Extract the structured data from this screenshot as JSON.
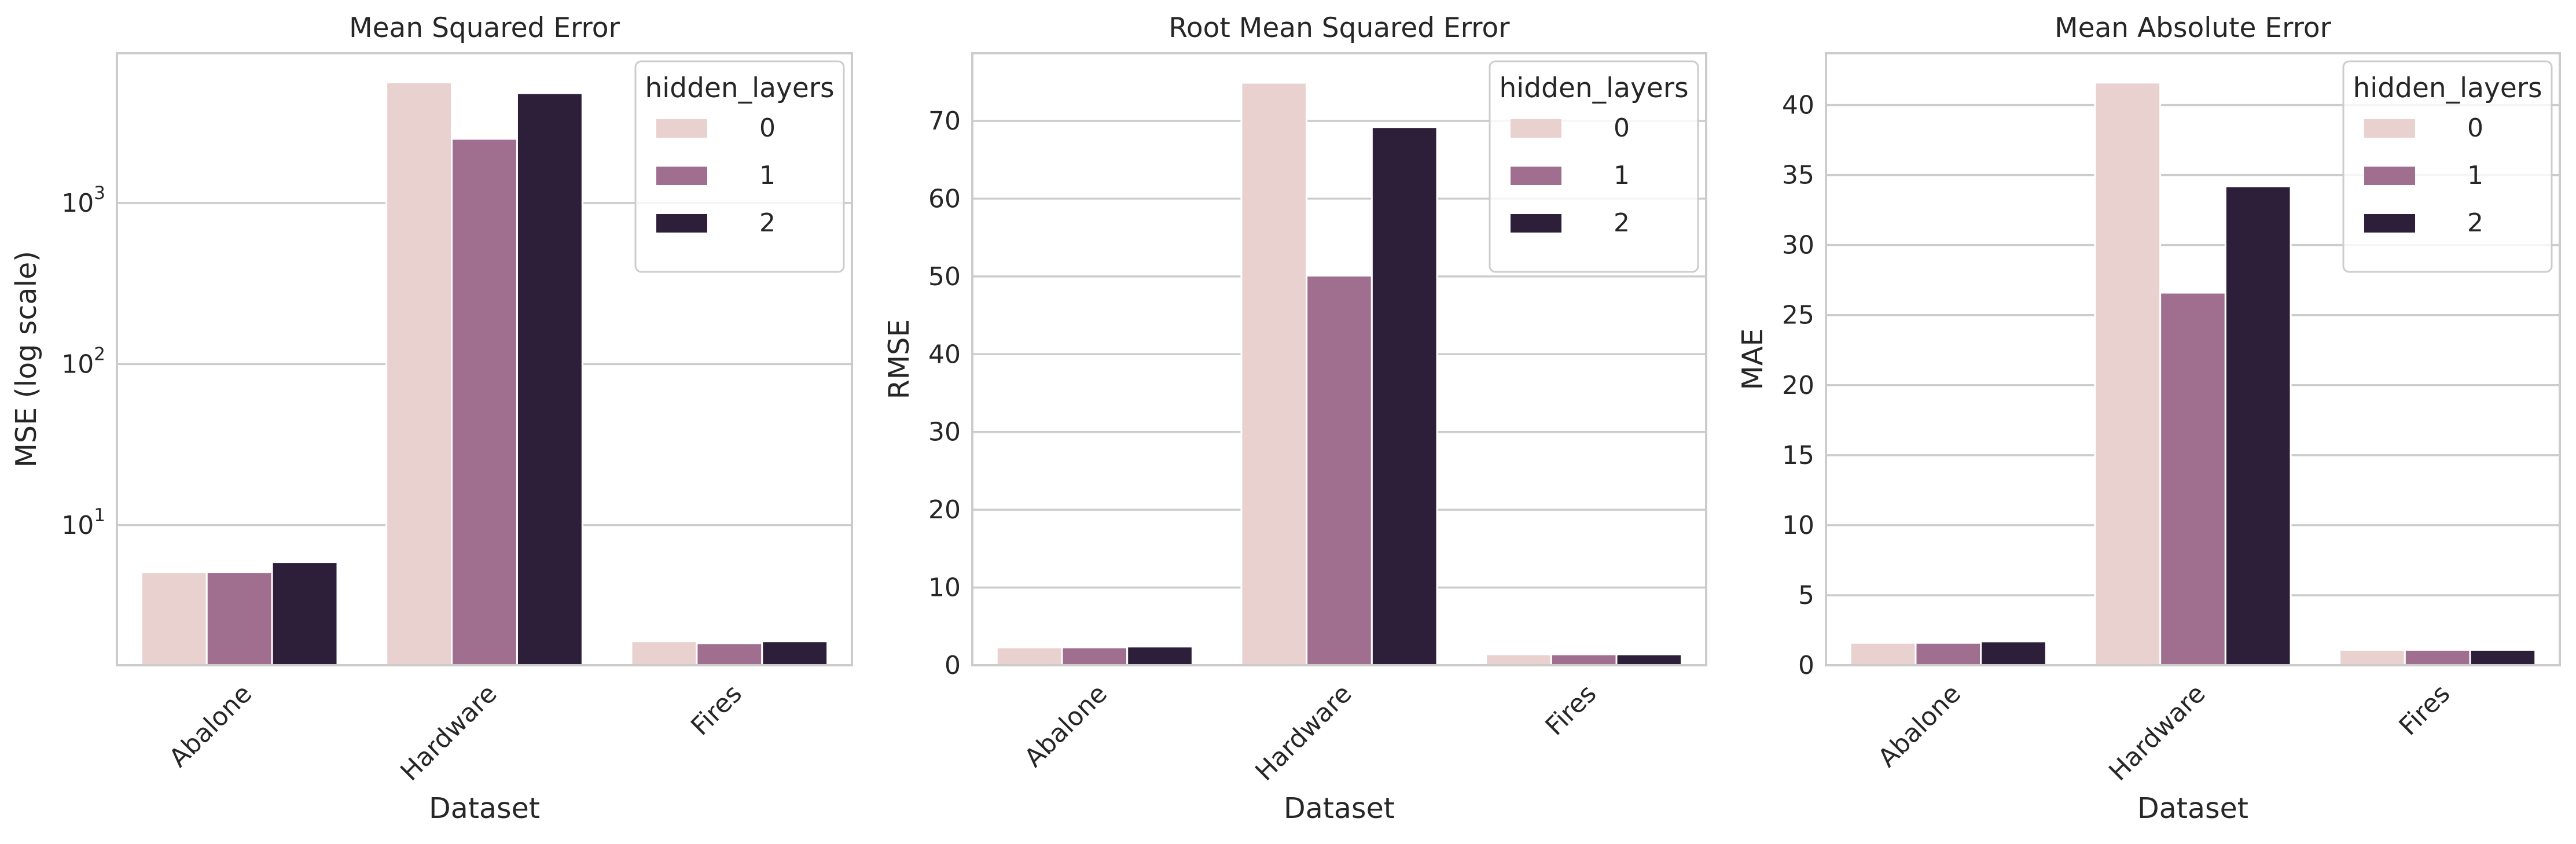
{
  "palette": [
    "#e8d1cf",
    "#a06e8e",
    "#2d1f39"
  ],
  "chart_data": [
    {
      "type": "bar",
      "title": "Mean Squared Error",
      "xlabel": "Dataset",
      "ylabel": "MSE (log scale)",
      "yscale": "log",
      "ylim": [
        1.35,
        8500
      ],
      "yticks": [
        {
          "value": 10,
          "base": "10",
          "exp": "1"
        },
        {
          "value": 100,
          "base": "10",
          "exp": "2"
        },
        {
          "value": 1000,
          "base": "10",
          "exp": "3"
        }
      ],
      "grid": true,
      "categories": [
        "Abalone",
        "Hardware",
        "Fires"
      ],
      "legend": {
        "title": "hidden_layers",
        "placement": "top-right"
      },
      "series": [
        {
          "name": "0",
          "values": [
            5.1,
            5600,
            1.9
          ]
        },
        {
          "name": "1",
          "values": [
            5.1,
            2500,
            1.85
          ]
        },
        {
          "name": "2",
          "values": [
            5.9,
            4800,
            1.9
          ]
        }
      ]
    },
    {
      "type": "bar",
      "title": "Root Mean Squared Error",
      "xlabel": "Dataset",
      "ylabel": "RMSE",
      "yscale": "linear",
      "ylim": [
        0,
        78.7
      ],
      "yticks": [
        {
          "value": 0,
          "label": "0"
        },
        {
          "value": 10,
          "label": "10"
        },
        {
          "value": 20,
          "label": "20"
        },
        {
          "value": 30,
          "label": "30"
        },
        {
          "value": 40,
          "label": "40"
        },
        {
          "value": 50,
          "label": "50"
        },
        {
          "value": 60,
          "label": "60"
        },
        {
          "value": 70,
          "label": "70"
        }
      ],
      "grid": true,
      "categories": [
        "Abalone",
        "Hardware",
        "Fires"
      ],
      "legend": {
        "title": "hidden_layers",
        "placement": "top-right"
      },
      "series": [
        {
          "name": "0",
          "values": [
            2.3,
            74.9,
            1.4
          ]
        },
        {
          "name": "1",
          "values": [
            2.3,
            50.1,
            1.4
          ]
        },
        {
          "name": "2",
          "values": [
            2.4,
            69.2,
            1.4
          ]
        }
      ]
    },
    {
      "type": "bar",
      "title": "Mean Absolute Error",
      "xlabel": "Dataset",
      "ylabel": "MAE",
      "yscale": "linear",
      "ylim": [
        0,
        43.7
      ],
      "yticks": [
        {
          "value": 0,
          "label": "0"
        },
        {
          "value": 5,
          "label": "5"
        },
        {
          "value": 10,
          "label": "10"
        },
        {
          "value": 15,
          "label": "15"
        },
        {
          "value": 20,
          "label": "20"
        },
        {
          "value": 25,
          "label": "25"
        },
        {
          "value": 30,
          "label": "30"
        },
        {
          "value": 35,
          "label": "35"
        },
        {
          "value": 40,
          "label": "40"
        }
      ],
      "grid": true,
      "categories": [
        "Abalone",
        "Hardware",
        "Fires"
      ],
      "legend": {
        "title": "hidden_layers",
        "placement": "top-right"
      },
      "series": [
        {
          "name": "0",
          "values": [
            1.6,
            41.6,
            1.1
          ]
        },
        {
          "name": "1",
          "values": [
            1.6,
            26.6,
            1.1
          ]
        },
        {
          "name": "2",
          "values": [
            1.7,
            34.2,
            1.1
          ]
        }
      ]
    }
  ]
}
